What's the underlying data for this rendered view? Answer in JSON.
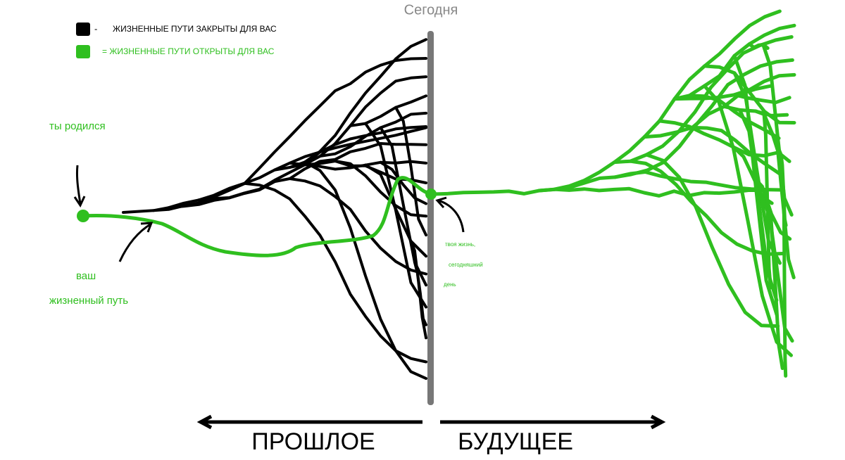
{
  "header": {
    "title": "Сегодня"
  },
  "legend": [
    {
      "marker": "-",
      "label": "ЖИЗНЕННЫЕ ПУТИ ЗАКРЫТЫ ДЛЯ ВАС"
    },
    {
      "label": "= ЖИЗНЕННЫЕ ПУТИ ОТКРЫТЫ ДЛЯ ВАС"
    }
  ],
  "annotations": {
    "born": "ты родился",
    "path": [
      "ваш",
      "жизненный путь"
    ],
    "today": [
      "твоя жизнь,",
      "сегодняшний",
      "день"
    ]
  },
  "timeline": {
    "past": "ПРОШЛОЕ",
    "future": "БУДУЩЕЕ"
  }
}
